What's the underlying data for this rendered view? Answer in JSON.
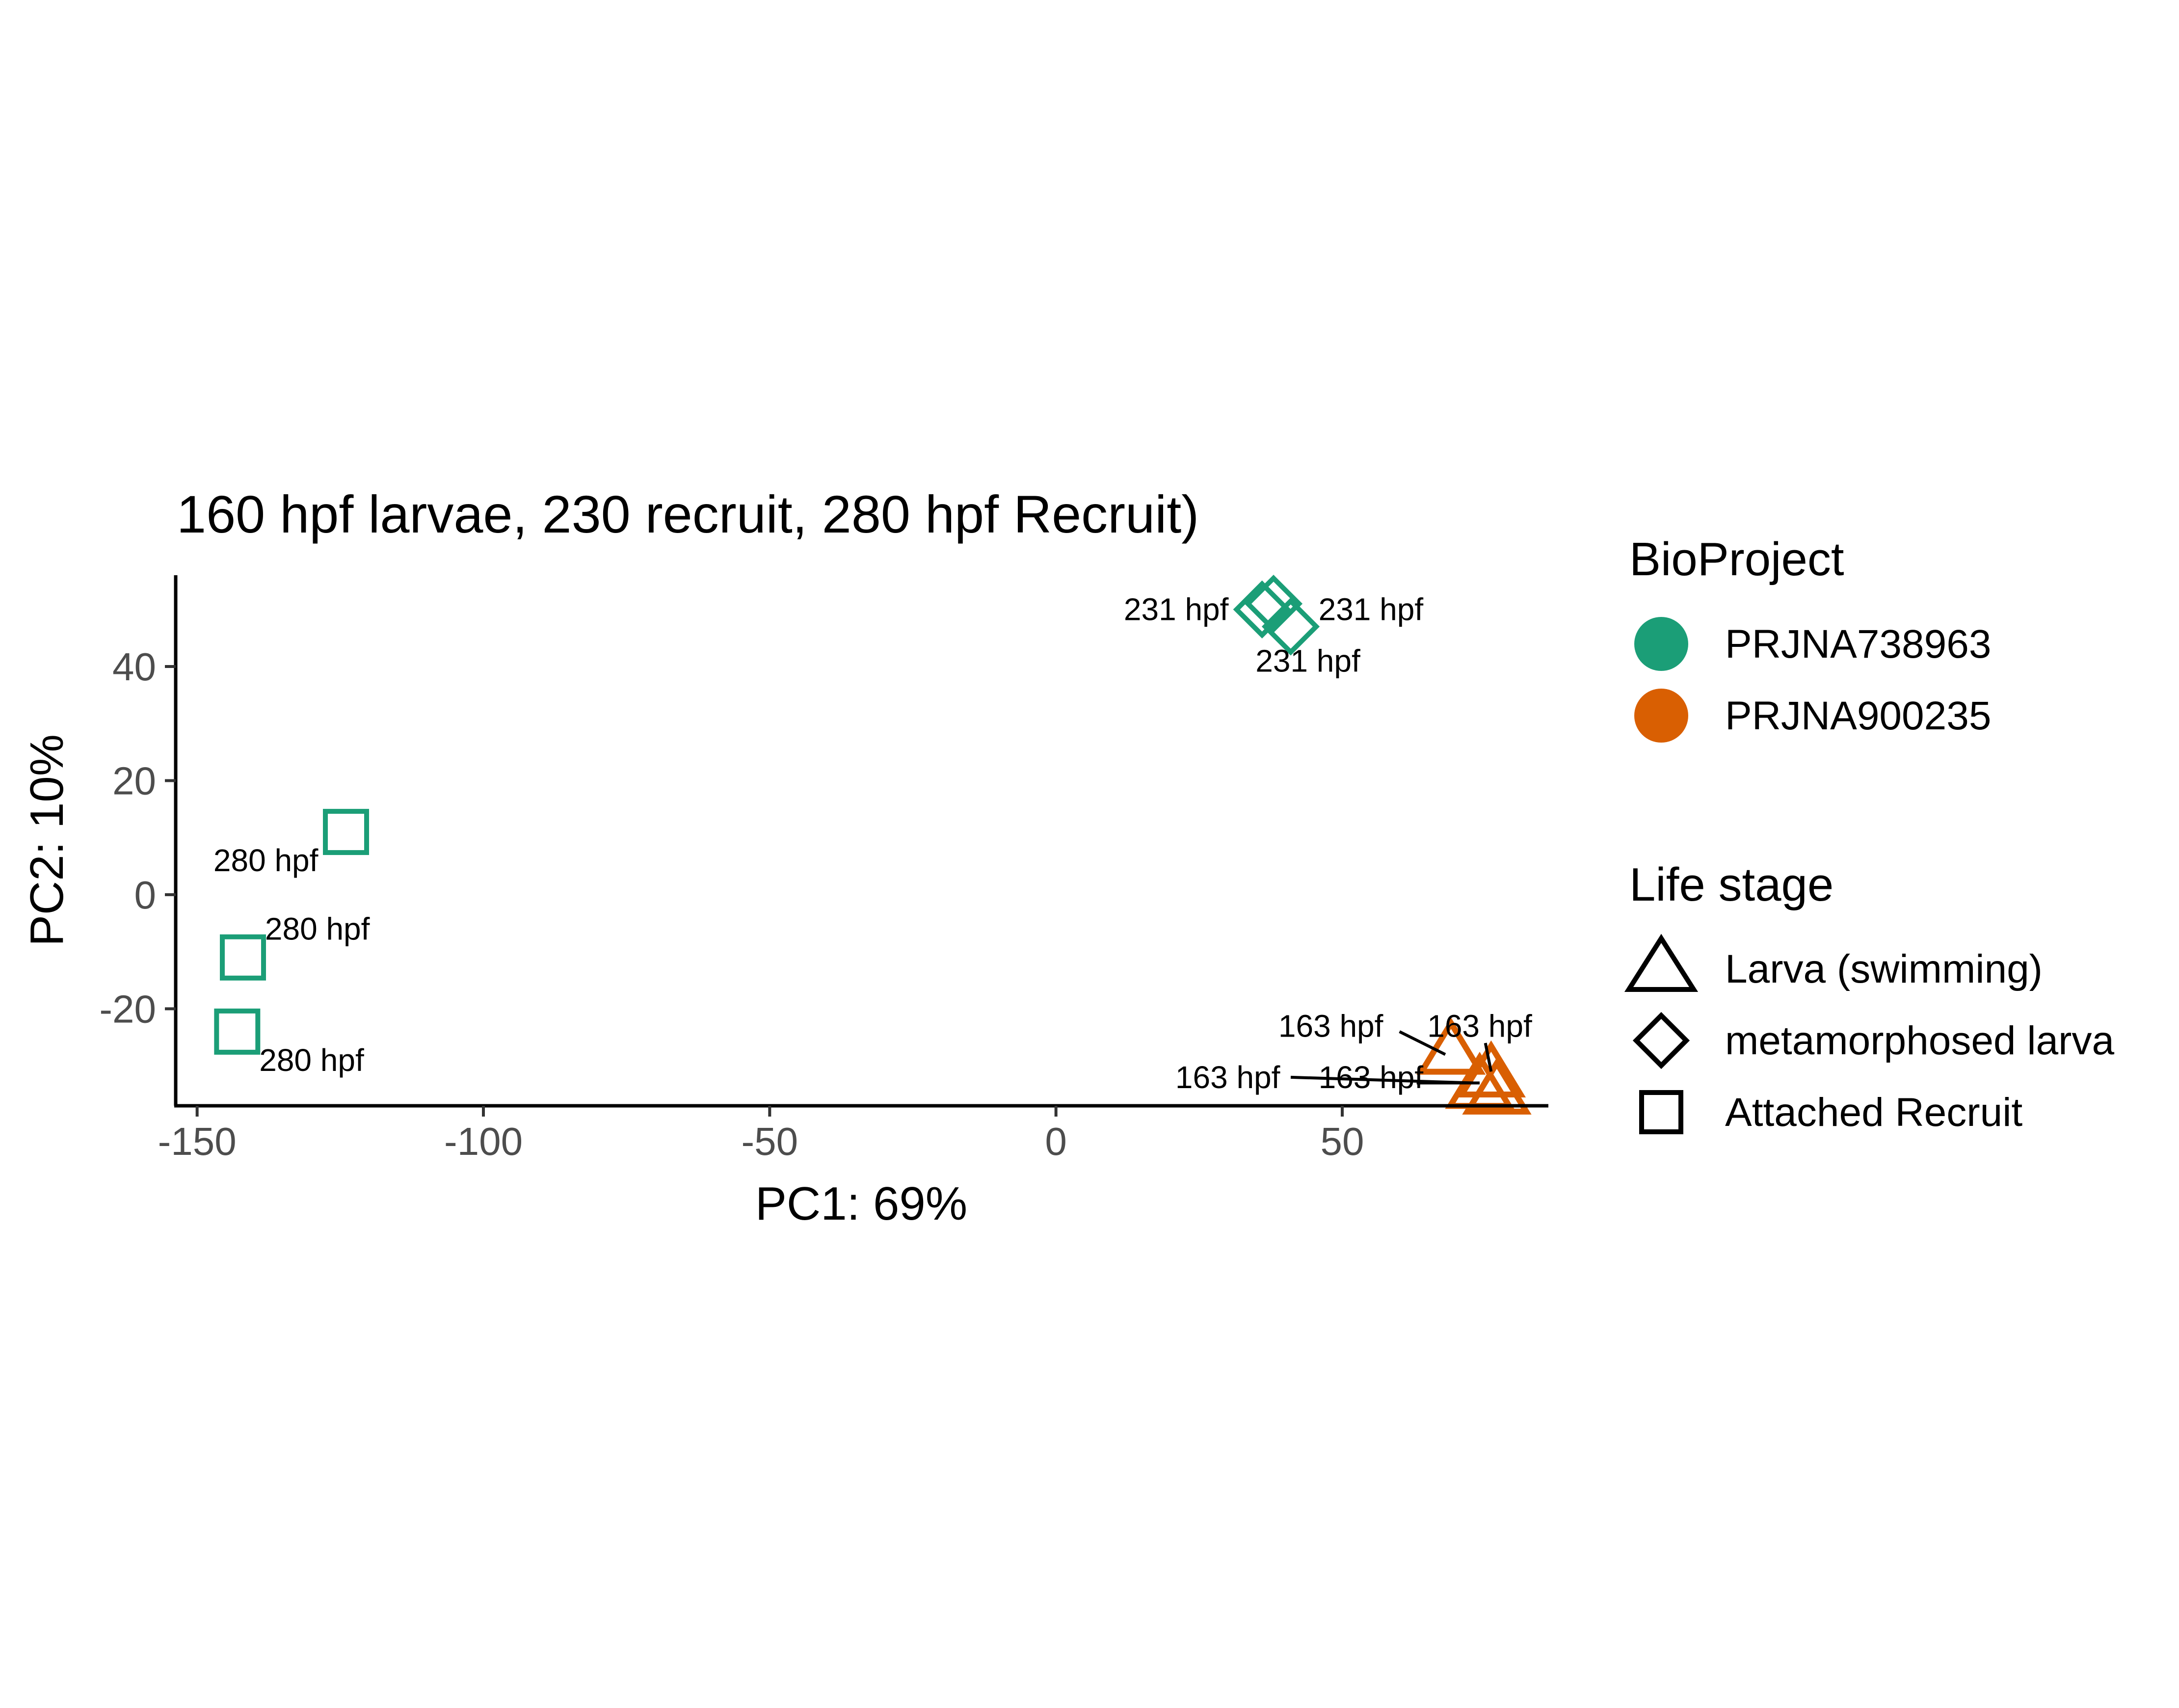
{
  "chart_data": {
    "type": "scatter",
    "title": "160 hpf larvae, 230 recruit, 280 hpf Recruit)",
    "xlabel": "PC1: 69%",
    "ylabel": "PC2: 10%",
    "xlim": [
      -154,
      86
    ],
    "ylim": [
      -37,
      56
    ],
    "xticks": [
      -150,
      -100,
      -50,
      0,
      50
    ],
    "xtick_labels": [
      "-150",
      "-100",
      "-50",
      "0",
      "50"
    ],
    "yticks": [
      40,
      20,
      0,
      -20
    ],
    "ytick_labels": [
      "40",
      "20",
      "0",
      "-20"
    ],
    "grid": false,
    "legend_placement": "right",
    "legend": {
      "color_title": "BioProject",
      "color_entries": [
        {
          "label": "PRJNA738963",
          "color": "#1B9E77"
        },
        {
          "label": "PRJNA900235",
          "color": "#D95F02"
        }
      ],
      "shape_title": "Life stage",
      "shape_entries": [
        {
          "label": "Larva (swimming)",
          "shape": "triangle"
        },
        {
          "label": "metamorphosed larva",
          "shape": "diamond"
        },
        {
          "label": "Attached Recruit",
          "shape": "square"
        }
      ]
    },
    "points": [
      {
        "x": -124,
        "y": 11,
        "shape": "square",
        "color": "#1B9E77",
        "label": "280 hpf",
        "lx": -138,
        "ly": 6
      },
      {
        "x": -142,
        "y": -11,
        "shape": "square",
        "color": "#1B9E77",
        "label": "280 hpf",
        "lx": -129,
        "ly": -6
      },
      {
        "x": -143,
        "y": -24,
        "shape": "square",
        "color": "#1B9E77",
        "label": "280 hpf",
        "lx": -130,
        "ly": -29
      },
      {
        "x": 36,
        "y": 50,
        "shape": "diamond",
        "color": "#1B9E77",
        "label": "231 hpf",
        "lx": 21,
        "ly": 50
      },
      {
        "x": 38,
        "y": 51,
        "shape": "diamond",
        "color": "#1B9E77",
        "label": "231 hpf",
        "lx": 55,
        "ly": 50
      },
      {
        "x": 41,
        "y": 47,
        "shape": "diamond",
        "color": "#1B9E77",
        "label": "231 hpf",
        "lx": 44,
        "ly": 41
      },
      {
        "x": 69,
        "y": -27,
        "shape": "triangle",
        "color": "#D95F02",
        "label": "163 hpf",
        "lx": 48,
        "ly": -23,
        "seg": [
          [
            60,
            -24
          ],
          [
            68,
            -28
          ]
        ]
      },
      {
        "x": 76,
        "y": -31,
        "shape": "triangle",
        "color": "#D95F02",
        "label": "163 hpf",
        "lx": 74,
        "ly": -23,
        "seg": [
          [
            75,
            -26
          ],
          [
            76,
            -31
          ]
        ]
      },
      {
        "x": 74,
        "y": -33,
        "shape": "triangle",
        "color": "#D95F02",
        "label": "163 hpf",
        "lx": 30,
        "ly": -32,
        "seg": [
          [
            41,
            -32
          ],
          [
            73,
            -33
          ]
        ]
      },
      {
        "x": 77,
        "y": -34,
        "shape": "triangle",
        "color": "#D95F02",
        "label": "163 hpf",
        "lx": 55,
        "ly": -32,
        "seg": [
          [
            63,
            -33
          ],
          [
            74,
            -33
          ]
        ]
      }
    ]
  }
}
